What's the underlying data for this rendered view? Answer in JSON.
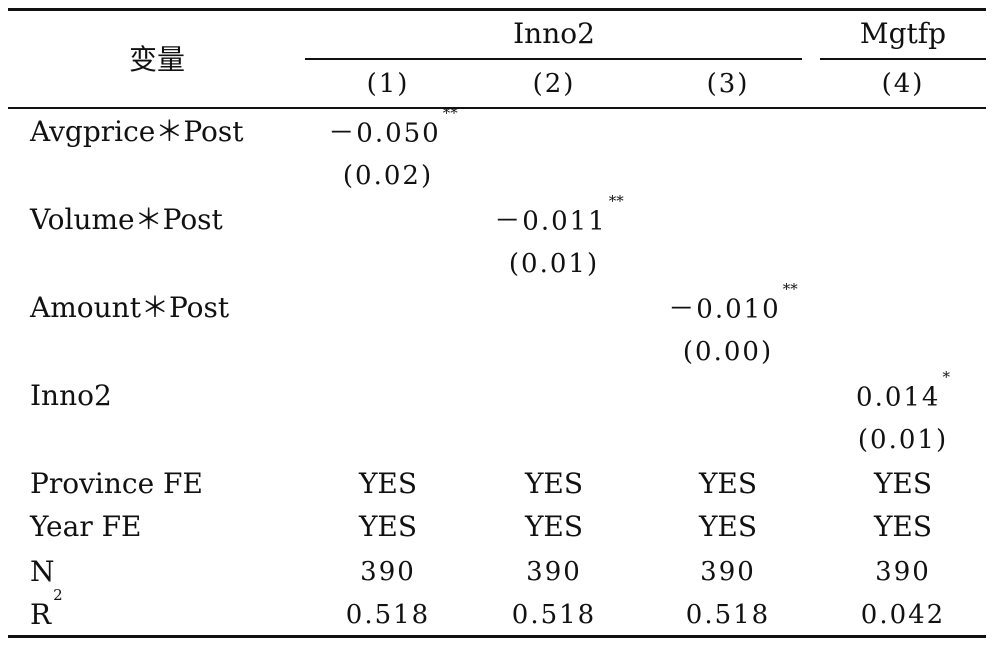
{
  "header": {
    "variable": "变量",
    "group1": "Inno2",
    "group2": "Mgtfp",
    "cols": [
      "(1)",
      "(2)",
      "(3)",
      "(4)"
    ]
  },
  "rows": [
    {
      "label": "Avgprice＊Post",
      "coef": "－0.050",
      "stars": "**",
      "se": "(0.02)"
    },
    {
      "label": "Volume＊Post",
      "coef": "－0.011",
      "stars": "**",
      "se": "(0.01)"
    },
    {
      "label": "Amount＊Post",
      "coef": "－0.010",
      "stars": "**",
      "se": "(0.00)"
    },
    {
      "label": "Inno2",
      "coef": "0.014",
      "stars": "*",
      "se": "(0.01)"
    }
  ],
  "controls": [
    {
      "label": "Province FE",
      "values": [
        "YES",
        "YES",
        "YES",
        "YES"
      ]
    },
    {
      "label": "Year FE",
      "values": [
        "YES",
        "YES",
        "YES",
        "YES"
      ]
    }
  ],
  "stats": [
    {
      "label": "N",
      "values": [
        "390",
        "390",
        "390",
        "390"
      ]
    },
    {
      "label": "R",
      "sup": "2",
      "values": [
        "0.518",
        "0.518",
        "0.518",
        "0.042"
      ]
    }
  ]
}
